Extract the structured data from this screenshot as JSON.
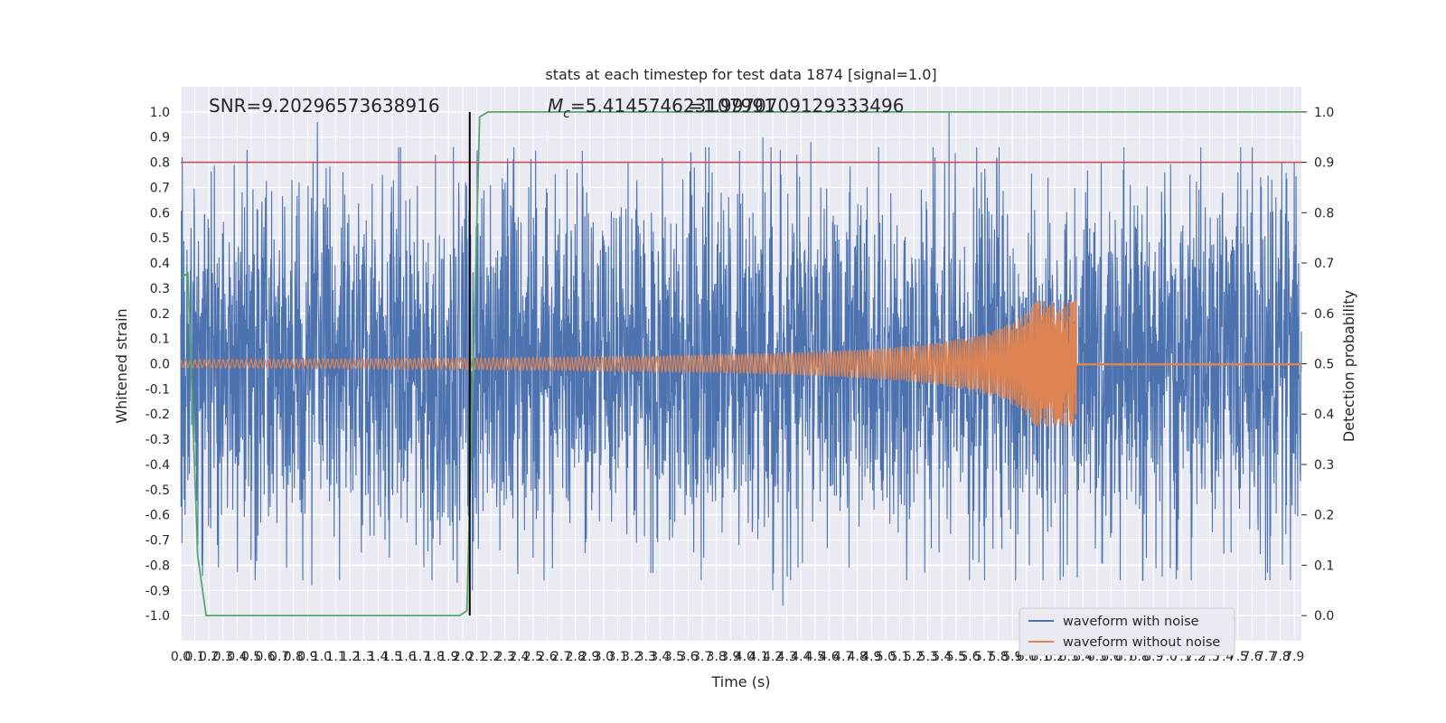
{
  "chart_data": {
    "type": "line",
    "title": "stats at each timestep for test data 1874 [signal=1.0]",
    "xlabel": "Time (s)",
    "ylabel": "Whitened strain",
    "y2label": "Detection probability",
    "xlim": [
      0.0,
      7.95
    ],
    "ylim": [
      -1.1,
      1.1
    ],
    "y2lim": [
      -0.05,
      1.05
    ],
    "x_ticks": [
      "0.0",
      "0.1",
      "0.2",
      "0.3",
      "0.4",
      "0.5",
      "0.6",
      "0.7",
      "0.8",
      "0.9",
      "1.0",
      "1.1",
      "1.2",
      "1.3",
      "1.4",
      "1.5",
      "1.6",
      "1.7",
      "1.8",
      "1.9",
      "2.0",
      "2.1",
      "2.2",
      "2.3",
      "2.4",
      "2.5",
      "2.6",
      "2.7",
      "2.8",
      "2.9",
      "3.0",
      "3.1",
      "3.2",
      "3.3",
      "3.4",
      "3.5",
      "3.6",
      "3.7",
      "3.8",
      "3.9",
      "4.0",
      "4.1",
      "4.2",
      "4.3",
      "4.4",
      "4.5",
      "4.6",
      "4.7",
      "4.8",
      "4.9",
      "5.0",
      "5.1",
      "5.2",
      "5.3",
      "5.4",
      "5.5",
      "5.6",
      "5.7",
      "5.8",
      "5.9",
      "6.0",
      "6.1",
      "6.2",
      "6.3",
      "6.4",
      "6.5",
      "6.6",
      "6.7",
      "6.8",
      "6.9",
      "7.0",
      "7.1",
      "7.2",
      "7.3",
      "7.4",
      "7.5",
      "7.6",
      "7.7",
      "7.8",
      "7.9"
    ],
    "y_ticks": [
      "1.0",
      "0.9",
      "0.8",
      "0.7",
      "0.6",
      "0.5",
      "0.4",
      "0.3",
      "0.2",
      "0.1",
      "0.0",
      "-0.1",
      "-0.2",
      "-0.3",
      "-0.4",
      "-0.5",
      "-0.6",
      "-0.7",
      "-0.8",
      "-0.9",
      "-1.0"
    ],
    "y2_ticks": [
      "1.0",
      "0.9",
      "0.8",
      "0.7",
      "0.6",
      "0.5",
      "0.4",
      "0.3",
      "0.2",
      "0.1",
      "0.0"
    ],
    "annotations": {
      "snr": "SNR=9.20296573638916",
      "mc_symbol": "M",
      "mc_sub": "c",
      "mc_value": "=5.414574623107991",
      "overlap": "=1.9970709129333496"
    },
    "threshold": 0.9,
    "marker_x": 2.05,
    "series": [
      {
        "name": "waveform with noise",
        "color": "#4c72b0",
        "rms": 0.35,
        "peaks": [
          [
            0.01,
            0.82
          ],
          [
            0.15,
            -0.8
          ],
          [
            0.26,
            -0.72
          ],
          [
            0.38,
            0.79
          ],
          [
            0.47,
            0.85
          ],
          [
            0.5,
            -0.78
          ],
          [
            0.6,
            0.66
          ],
          [
            0.75,
            -0.81
          ],
          [
            0.84,
            0.72
          ],
          [
            0.93,
            -0.88
          ],
          [
            0.97,
            0.96
          ],
          [
            1.15,
            0.76
          ],
          [
            1.28,
            -0.75
          ],
          [
            1.43,
            0.75
          ],
          [
            1.56,
            0.86
          ],
          [
            1.67,
            -0.72
          ],
          [
            1.84,
            -0.72
          ],
          [
            1.96,
            -0.87
          ],
          [
            2.02,
            0.72
          ],
          [
            2.07,
            -0.9
          ],
          [
            2.3,
            0.72
          ],
          [
            2.39,
            -0.78
          ],
          [
            2.5,
            -0.77
          ],
          [
            2.6,
            0.68
          ],
          [
            2.88,
            0.68
          ],
          [
            3.35,
            -0.83
          ],
          [
            3.62,
            0.84
          ],
          [
            3.71,
            -0.77
          ],
          [
            3.77,
            0.76
          ],
          [
            3.96,
            -0.72
          ],
          [
            4.13,
            0.9
          ],
          [
            4.2,
            -0.9
          ],
          [
            4.27,
            -0.96
          ],
          [
            4.37,
            0.83
          ],
          [
            4.38,
            -0.81
          ],
          [
            4.47,
            0.88
          ],
          [
            5.35,
            0.82
          ],
          [
            5.42,
            0.8
          ],
          [
            5.45,
            1.0
          ],
          [
            5.62,
            -0.78
          ],
          [
            5.68,
            0.76
          ],
          [
            6.02,
            -0.8
          ],
          [
            6.29,
            -0.8
          ],
          [
            6.53,
            0.8
          ],
          [
            6.85,
            -0.77
          ],
          [
            6.98,
            0.76
          ],
          [
            7.07,
            -0.82
          ],
          [
            7.45,
            -0.75
          ],
          [
            7.5,
            0.76
          ],
          [
            7.66,
            0.74
          ],
          [
            7.71,
            -0.83
          ],
          [
            7.81,
            0.8
          ],
          [
            7.9,
            0.8
          ]
        ]
      },
      {
        "name": "waveform without noise",
        "color": "#dd8452",
        "chirp_start_amp": 0.016,
        "merger_time": 6.35,
        "merger_peak": 0.25,
        "merger_trough": -0.2
      },
      {
        "name": "detection probability",
        "color": "#55a868",
        "axis": "right",
        "x": [
          0.0,
          0.05,
          0.12,
          0.18,
          1.98,
          2.03,
          2.08,
          2.12,
          2.18,
          7.95
        ],
        "values": [
          0.67,
          0.68,
          0.12,
          0.0,
          0.0,
          0.01,
          0.55,
          0.99,
          1.0,
          1.0
        ]
      },
      {
        "name": "threshold",
        "color": "#c44e52",
        "axis": "right",
        "values": [
          0.9
        ]
      }
    ],
    "legend": {
      "position": "lower-right",
      "entries": [
        {
          "label": "waveform with noise",
          "color": "#4c72b0"
        },
        {
          "label": "waveform without noise",
          "color": "#dd8452"
        }
      ]
    },
    "grid": true,
    "background": "#eaeaf2"
  }
}
